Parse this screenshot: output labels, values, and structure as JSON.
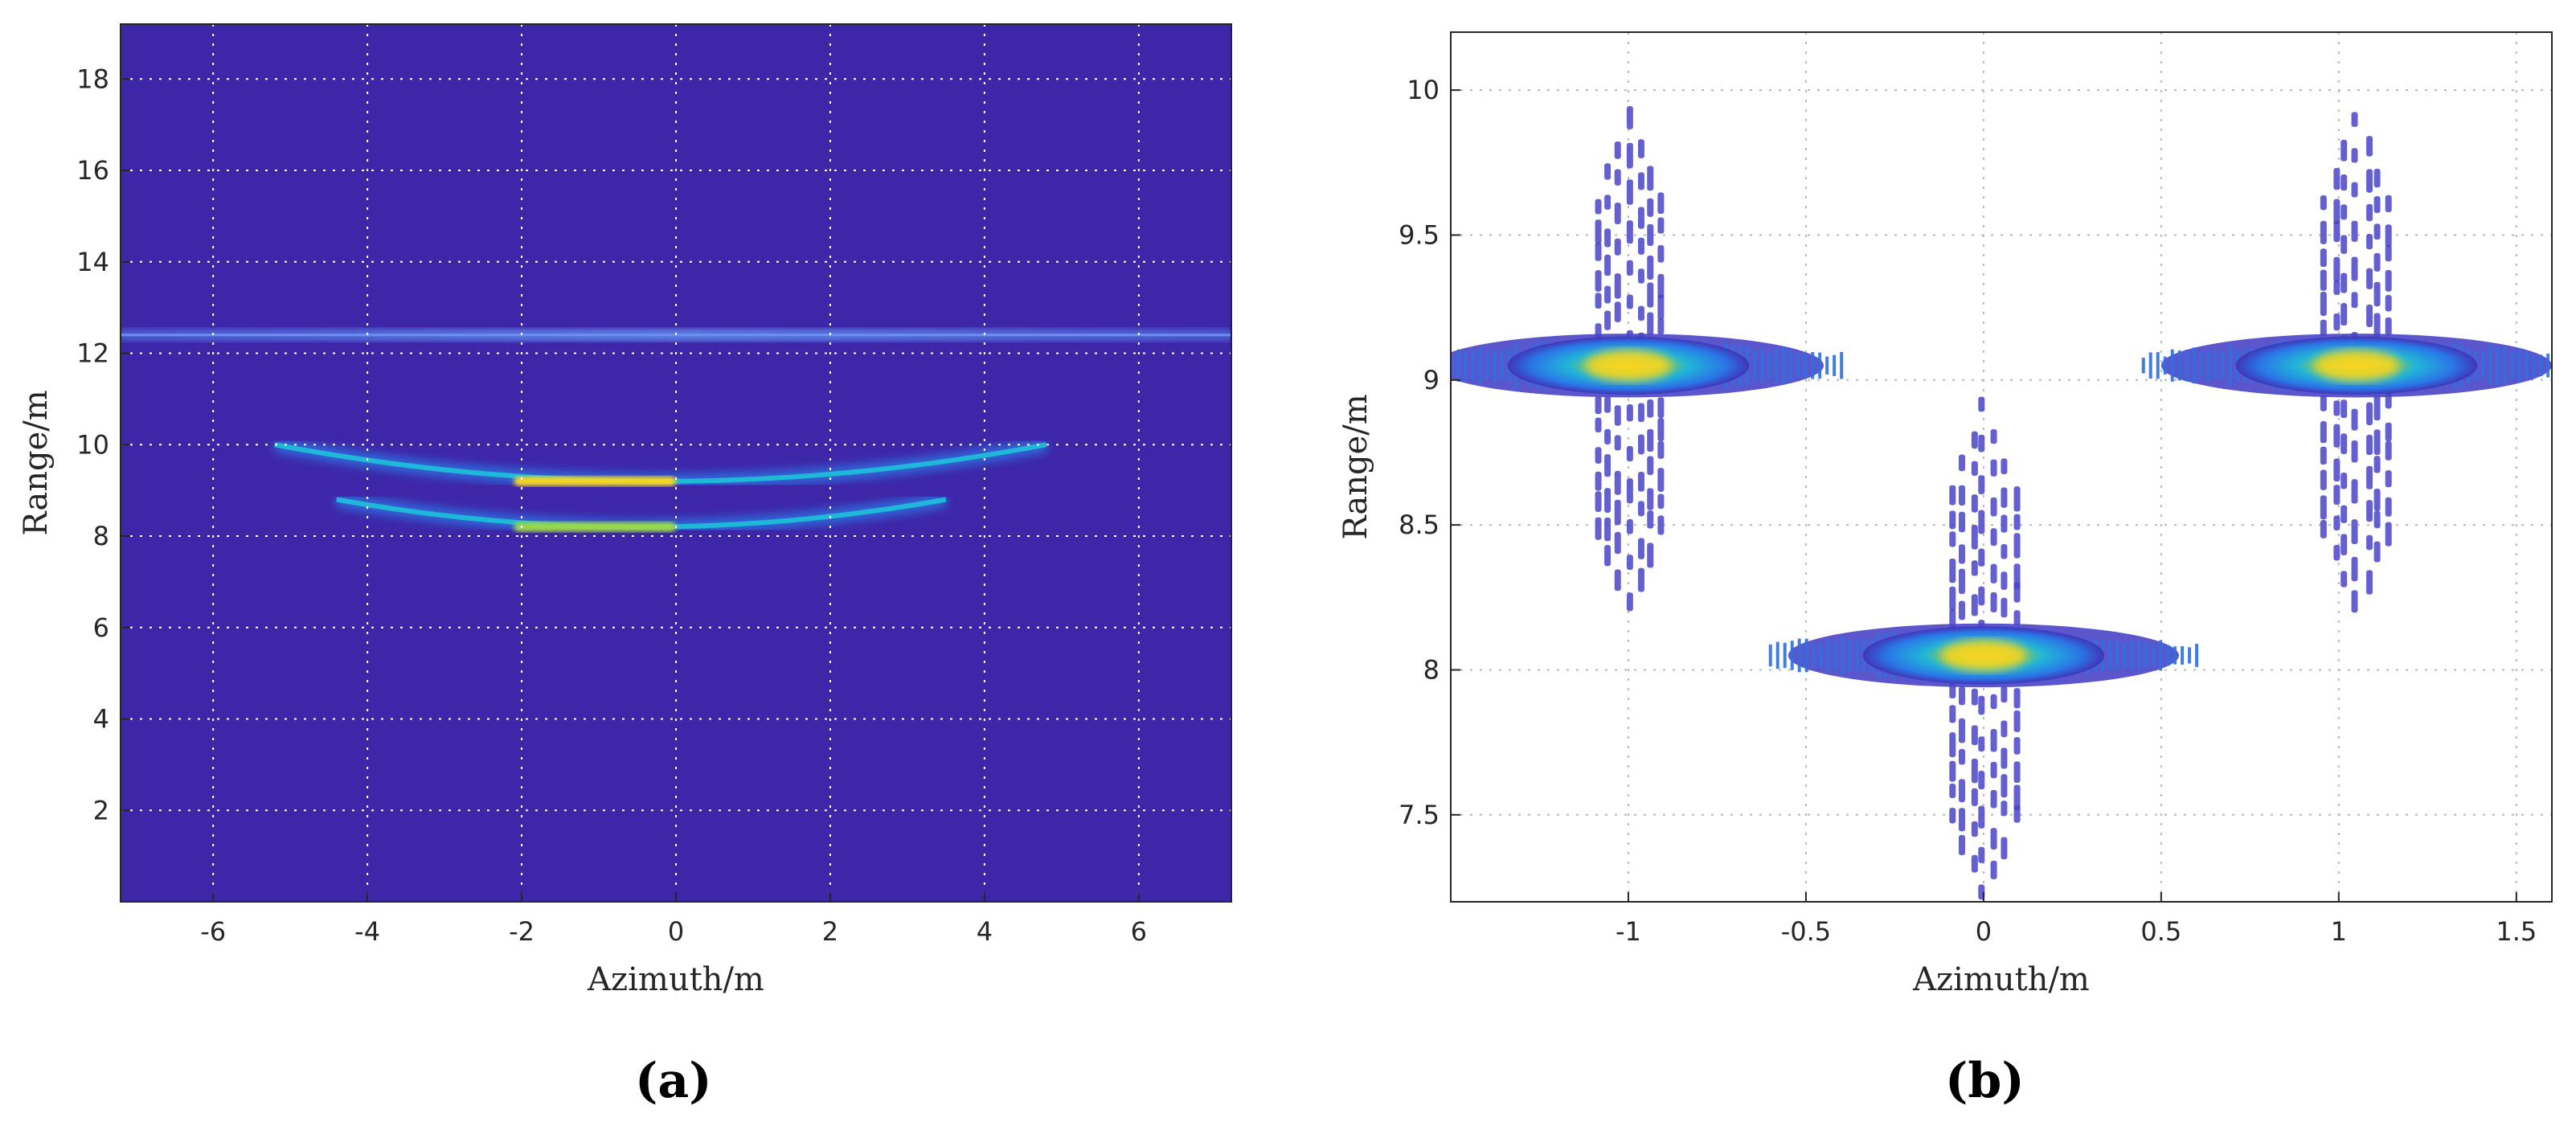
{
  "colors": {
    "background_a": "#3e26a8",
    "low": "#4033b8",
    "mid": "#1fa4e6",
    "high": "#3ec4a8",
    "peak": "#f9d624",
    "grid": "#ffffff",
    "grid_b": "#b8b8b8",
    "axis": "#262626"
  },
  "chart_data": [
    {
      "id": "a",
      "type": "heatmap",
      "caption": "(a)",
      "title": "",
      "xlabel": "Azimuth/m",
      "ylabel": "Range/m",
      "xlim": [
        -7.2,
        7.2
      ],
      "ylim": [
        0,
        19.2
      ],
      "xticks": [
        -6,
        -4,
        -2,
        0,
        2,
        4,
        6
      ],
      "yticks": [
        2,
        4,
        6,
        8,
        10,
        12,
        14,
        16,
        18
      ],
      "grid": true,
      "features": [
        {
          "kind": "line",
          "range": 12.4,
          "azimuth_from": -7.2,
          "azimuth_to": 7.2,
          "level": "mid"
        },
        {
          "kind": "arc",
          "azimuth_from": -5.2,
          "azimuth_to": 4.8,
          "range_center": 9.2,
          "range_edge": 10.0,
          "level": "peak"
        },
        {
          "kind": "arc",
          "azimuth_from": -4.4,
          "azimuth_to": 3.5,
          "range_center": 8.2,
          "range_edge": 8.8,
          "level": "high"
        }
      ]
    },
    {
      "id": "b",
      "type": "heatmap",
      "caption": "(b)",
      "title": "",
      "xlabel": "Azimuth/m",
      "ylabel": "Range/m",
      "xlim": [
        -1.5,
        1.6
      ],
      "ylim": [
        7.2,
        10.2
      ],
      "xticks": [
        -1,
        -0.5,
        0,
        0.5,
        1,
        1.5
      ],
      "yticks": [
        7.5,
        8,
        8.5,
        9,
        9.5,
        10
      ],
      "grid": true,
      "targets": [
        {
          "azimuth": -1.0,
          "range": 9.05
        },
        {
          "azimuth": 0.0,
          "range": 8.05
        },
        {
          "azimuth": 1.05,
          "range": 9.05
        }
      ]
    }
  ]
}
